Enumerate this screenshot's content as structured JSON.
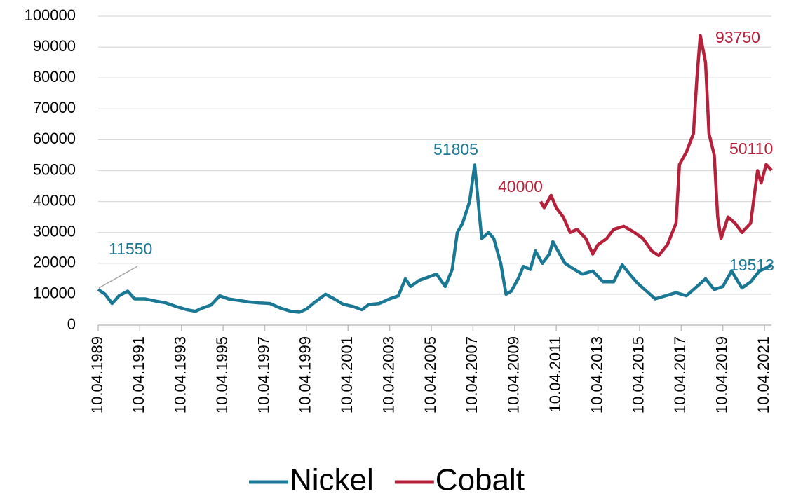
{
  "chart_data": {
    "type": "line",
    "series": [
      {
        "name": "Nickel",
        "color": "#1b7894",
        "x": [
          "1989-04-10",
          "1989-08-10",
          "1989-12-10",
          "1990-04-10",
          "1990-09-10",
          "1991-01-10",
          "1991-07-10",
          "1992-01-10",
          "1992-07-10",
          "1993-01-10",
          "1993-07-10",
          "1993-12-10",
          "1994-04-10",
          "1994-09-10",
          "1995-02-10",
          "1995-07-10",
          "1996-01-10",
          "1996-07-10",
          "1997-01-10",
          "1997-07-10",
          "1998-01-10",
          "1998-07-10",
          "1998-12-10",
          "1999-04-10",
          "1999-09-10",
          "2000-03-10",
          "2000-08-10",
          "2001-01-10",
          "2001-07-10",
          "2001-12-10",
          "2002-04-10",
          "2002-10-10",
          "2003-04-10",
          "2003-09-10",
          "2004-01-10",
          "2004-04-10",
          "2004-09-10",
          "2005-02-10",
          "2005-07-10",
          "2005-12-10",
          "2006-04-10",
          "2006-07-10",
          "2006-10-10",
          "2007-02-10",
          "2007-05-10",
          "2007-07-10",
          "2007-09-10",
          "2008-01-10",
          "2008-04-10",
          "2008-08-10",
          "2008-11-10",
          "2009-02-10",
          "2009-06-10",
          "2009-09-10",
          "2010-01-10",
          "2010-04-10",
          "2010-08-10",
          "2010-12-10",
          "2011-02-10",
          "2011-06-10",
          "2011-09-10",
          "2012-01-10",
          "2012-07-10",
          "2013-01-10",
          "2013-07-10",
          "2014-01-10",
          "2014-06-10",
          "2014-11-10",
          "2015-03-10",
          "2015-08-10",
          "2016-01-10",
          "2016-07-10",
          "2017-01-10",
          "2017-07-10",
          "2018-01-10",
          "2018-06-10",
          "2018-11-10",
          "2019-04-10",
          "2019-09-10",
          "2020-03-10",
          "2020-08-10",
          "2021-01-10",
          "2021-05-10",
          "2021-08-10"
        ],
        "values": [
          11550,
          10000,
          7000,
          9500,
          11000,
          8500,
          8500,
          7800,
          7200,
          6000,
          5000,
          4500,
          5500,
          6500,
          9500,
          8500,
          8000,
          7500,
          7200,
          7000,
          5500,
          4500,
          4200,
          5200,
          7500,
          10000,
          8500,
          6800,
          6000,
          5000,
          6700,
          7000,
          8500,
          9500,
          15000,
          12500,
          14500,
          15500,
          16500,
          12500,
          18000,
          30000,
          33000,
          40000,
          51805,
          40000,
          28000,
          30000,
          28000,
          20000,
          10000,
          11000,
          15000,
          19000,
          18000,
          24000,
          20000,
          23000,
          27000,
          23000,
          20000,
          18500,
          16500,
          17500,
          14000,
          14000,
          19500,
          16000,
          13500,
          11000,
          8500,
          9500,
          10500,
          9500,
          12500,
          15000,
          11500,
          12500,
          17500,
          12000,
          14000,
          17500,
          18500,
          19513
        ]
      },
      {
        "name": "Cobalt",
        "color": "#b5213a",
        "x": [
          "2010-07-10",
          "2010-09-10",
          "2011-01-10",
          "2011-04-10",
          "2011-08-10",
          "2011-12-10",
          "2012-04-10",
          "2012-09-10",
          "2013-01-10",
          "2013-04-10",
          "2013-09-10",
          "2014-01-10",
          "2014-07-10",
          "2015-01-10",
          "2015-06-10",
          "2015-11-10",
          "2016-03-10",
          "2016-08-10",
          "2017-01-10",
          "2017-03-10",
          "2017-07-10",
          "2017-11-10",
          "2018-01-10",
          "2018-03-10",
          "2018-06-10",
          "2018-08-10",
          "2018-11-10",
          "2019-01-10",
          "2019-03-10",
          "2019-07-10",
          "2019-11-10",
          "2020-03-10",
          "2020-08-10",
          "2020-12-10",
          "2021-02-10",
          "2021-05-10",
          "2021-08-10"
        ],
        "values": [
          40000,
          38000,
          42000,
          38000,
          35000,
          30000,
          31000,
          28000,
          23000,
          26000,
          28000,
          31000,
          32000,
          30000,
          28000,
          24000,
          22500,
          26000,
          33000,
          52000,
          56000,
          62000,
          80000,
          93750,
          85000,
          62000,
          55000,
          35000,
          28000,
          35000,
          33000,
          30000,
          33000,
          50000,
          46000,
          52000,
          50110
        ]
      }
    ],
    "annotations": [
      {
        "text": "11550",
        "color": "#1b7894"
      },
      {
        "text": "51805",
        "color": "#1b7894"
      },
      {
        "text": "40000",
        "color": "#b5213a"
      },
      {
        "text": "93750",
        "color": "#b5213a"
      },
      {
        "text": "50110",
        "color": "#b5213a"
      },
      {
        "text": "19513",
        "color": "#1b7894"
      }
    ],
    "xlim": [
      "1989-04-10",
      "2021-08-10"
    ],
    "xticks": [
      {
        "value": "1989-04-10",
        "label": "10.04.1989"
      },
      {
        "value": "1991-04-10",
        "label": "10.04.1991"
      },
      {
        "value": "1993-04-10",
        "label": "10.04.1993"
      },
      {
        "value": "1995-04-10",
        "label": "10.04.1995"
      },
      {
        "value": "1997-04-10",
        "label": "10.04.1997"
      },
      {
        "value": "1999-04-10",
        "label": "10.04.1999"
      },
      {
        "value": "2001-04-10",
        "label": "10.04.2001"
      },
      {
        "value": "2003-04-10",
        "label": "10.04.2003"
      },
      {
        "value": "2005-04-10",
        "label": "10.04.2005"
      },
      {
        "value": "2007-04-10",
        "label": "10.04.2007"
      },
      {
        "value": "2009-04-10",
        "label": "10.04.2009"
      },
      {
        "value": "2011-04-10",
        "label": "10.04.2011"
      },
      {
        "value": "2013-04-10",
        "label": "10.04.2013"
      },
      {
        "value": "2015-04-10",
        "label": "10.04.2015"
      },
      {
        "value": "2017-04-10",
        "label": "10.04.2017"
      },
      {
        "value": "2019-04-10",
        "label": "10.04.2019"
      },
      {
        "value": "2021-04-10",
        "label": "10.04.2021"
      }
    ],
    "ylim": [
      0,
      100000
    ],
    "yticks": [
      0,
      10000,
      20000,
      30000,
      40000,
      50000,
      60000,
      70000,
      80000,
      90000,
      100000
    ],
    "grid": true,
    "legend": "bottom"
  }
}
